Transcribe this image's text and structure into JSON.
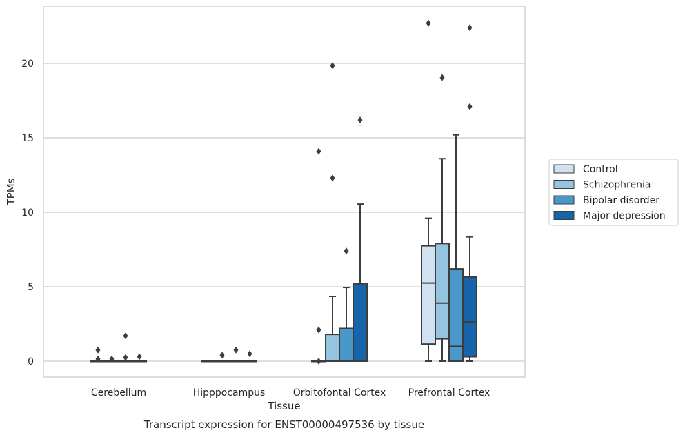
{
  "chart_data": {
    "type": "boxplot",
    "title": "",
    "caption": "Transcript expression for ENST00000497536 by tissue",
    "xlabel": "Tissue",
    "ylabel": "TPMs",
    "ylim": [
      -1.1,
      23.6
    ],
    "yticks": [
      0,
      5,
      10,
      15,
      20
    ],
    "grid": "horizontal",
    "legend_position": "right",
    "categories": [
      "Cerebellum",
      "Hipppocampus",
      "Orbitofontal Cortex",
      "Prefrontal Cortex"
    ],
    "series": [
      {
        "name": "Control",
        "color": "#d0e1f2",
        "boxes": [
          {
            "min": 0,
            "q1": 0,
            "median": 0,
            "q3": 0,
            "max": 0,
            "outliers": [
              0.75,
              0.15
            ]
          },
          {
            "min": 0,
            "q1": 0,
            "median": 0,
            "q3": 0,
            "max": 0,
            "outliers": []
          },
          {
            "min": 0,
            "q1": 0,
            "median": 0,
            "q3": 0,
            "max": 0,
            "outliers": [
              2.1,
              14.1,
              0.0
            ]
          },
          {
            "min": 0,
            "q1": 1.15,
            "median": 5.25,
            "q3": 7.75,
            "max": 9.6,
            "outliers": [
              22.7
            ]
          }
        ]
      },
      {
        "name": "Schizophrenia",
        "color": "#94c4df",
        "boxes": [
          {
            "min": 0,
            "q1": 0,
            "median": 0,
            "q3": 0,
            "max": 0,
            "outliers": [
              0.15
            ]
          },
          {
            "min": 0,
            "q1": 0,
            "median": 0,
            "q3": 0,
            "max": 0,
            "outliers": [
              0.4
            ]
          },
          {
            "min": 0,
            "q1": 0,
            "median": 0,
            "q3": 1.8,
            "max": 4.35,
            "outliers": [
              19.85,
              12.3
            ]
          },
          {
            "min": 0,
            "q1": 1.5,
            "median": 3.9,
            "q3": 7.9,
            "max": 13.6,
            "outliers": [
              19.05
            ]
          }
        ]
      },
      {
        "name": "Bipolar disorder",
        "color": "#4a98c9",
        "boxes": [
          {
            "min": 0,
            "q1": 0,
            "median": 0,
            "q3": 0,
            "max": 0,
            "outliers": [
              0.25,
              1.7
            ]
          },
          {
            "min": 0,
            "q1": 0,
            "median": 0,
            "q3": 0,
            "max": 0,
            "outliers": [
              0.75
            ]
          },
          {
            "min": 0,
            "q1": 0,
            "median": 0,
            "q3": 2.2,
            "max": 4.95,
            "outliers": [
              7.4
            ]
          },
          {
            "min": 0,
            "q1": 0,
            "median": 1.0,
            "q3": 6.2,
            "max": 15.2,
            "outliers": []
          }
        ]
      },
      {
        "name": "Major depression",
        "color": "#1764ab",
        "boxes": [
          {
            "min": 0,
            "q1": 0,
            "median": 0,
            "q3": 0,
            "max": 0,
            "outliers": [
              0.3
            ]
          },
          {
            "min": 0,
            "q1": 0,
            "median": 0,
            "q3": 0,
            "max": 0,
            "outliers": [
              0.5
            ]
          },
          {
            "min": 0,
            "q1": 0,
            "median": 0,
            "q3": 5.2,
            "max": 10.55,
            "outliers": [
              16.2
            ]
          },
          {
            "min": 0,
            "q1": 0.3,
            "median": 2.65,
            "q3": 5.65,
            "max": 8.35,
            "outliers": [
              22.4,
              17.1
            ]
          }
        ]
      }
    ]
  }
}
